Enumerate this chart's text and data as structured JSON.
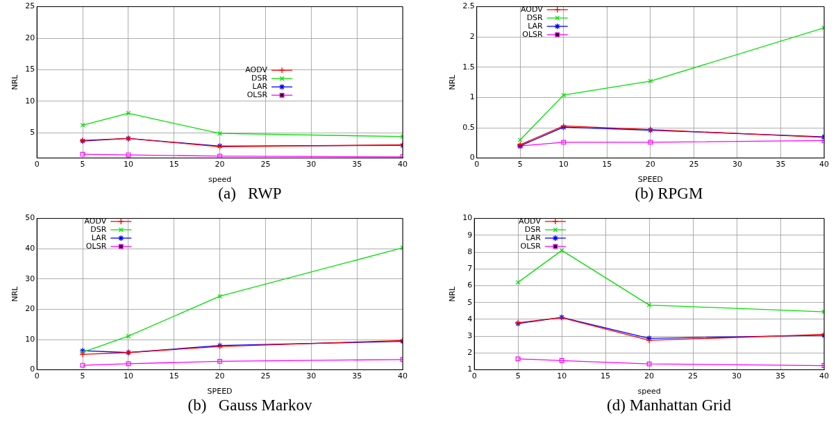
{
  "chart_data": [
    {
      "type": "line",
      "title": "(a)   RWP",
      "xlabel": "speed",
      "ylabel": "NRL",
      "x": [
        5,
        10,
        20,
        40
      ],
      "xlim": [
        0,
        40
      ],
      "xticks": [
        0,
        5,
        10,
        15,
        20,
        25,
        30,
        35,
        40
      ],
      "ylim": [
        1,
        25
      ],
      "yticks": [
        5,
        10,
        15,
        20,
        25
      ],
      "grid": true,
      "legend": "right",
      "series": [
        {
          "name": "AODV",
          "color": "#ff0000",
          "marker": "plus",
          "values": [
            3.8,
            4.1,
            2.8,
            3.1
          ]
        },
        {
          "name": "DSR",
          "color": "#00e000",
          "marker": "x",
          "values": [
            6.2,
            8.1,
            4.9,
            4.4
          ]
        },
        {
          "name": "LAR",
          "color": "#0000ff",
          "marker": "cross",
          "values": [
            3.7,
            4.1,
            2.9,
            3
          ]
        },
        {
          "name": "OLSR",
          "color": "#ff00ff",
          "marker": "square",
          "values": [
            1.6,
            1.5,
            1.3,
            1.2
          ]
        }
      ]
    },
    {
      "type": "line",
      "title": "(b) RPGM",
      "xlabel": "SPEED",
      "ylabel": "NRL",
      "x": [
        5,
        10,
        20,
        40
      ],
      "xlim": [
        0,
        40
      ],
      "xticks": [
        0,
        5,
        10,
        15,
        20,
        25,
        30,
        35,
        40
      ],
      "ylim": [
        0,
        2.5
      ],
      "yticks": [
        0,
        0.5,
        1,
        1.5,
        2,
        2.5
      ],
      "grid": true,
      "legend": "top left",
      "series": [
        {
          "name": "AODV",
          "color": "#ff0000",
          "marker": "plus",
          "values": [
            0.22,
            0.53,
            0.47,
            0.34
          ]
        },
        {
          "name": "DSR",
          "color": "#00e000",
          "marker": "x",
          "values": [
            0.3,
            1.04,
            1.27,
            2.15
          ]
        },
        {
          "name": "LAR",
          "color": "#0000ff",
          "marker": "cross",
          "values": [
            0.2,
            0.51,
            0.46,
            0.35
          ]
        },
        {
          "name": "OLSR",
          "color": "#ff00ff",
          "marker": "square",
          "values": [
            0.2,
            0.26,
            0.26,
            0.29
          ]
        }
      ]
    },
    {
      "type": "line",
      "title": "(b)   Gauss Markov",
      "xlabel": "SPEED",
      "ylabel": "NRL",
      "x": [
        5,
        10,
        20,
        40
      ],
      "xlim": [
        0,
        40
      ],
      "xticks": [
        0,
        5,
        10,
        15,
        20,
        25,
        30,
        35,
        40
      ],
      "ylim": [
        0,
        50
      ],
      "yticks": [
        0,
        10,
        20,
        30,
        40,
        50
      ],
      "grid": true,
      "legend": "top left",
      "series": [
        {
          "name": "AODV",
          "color": "#ff0000",
          "marker": "plus",
          "values": [
            5.1,
            5.7,
            7.7,
            9.7
          ]
        },
        {
          "name": "DSR",
          "color": "#00e000",
          "marker": "x",
          "values": [
            5.8,
            11.1,
            24.3,
            40.3
          ]
        },
        {
          "name": "LAR",
          "color": "#0000ff",
          "marker": "cross",
          "values": [
            6.3,
            5.7,
            8,
            9.4
          ]
        },
        {
          "name": "OLSR",
          "color": "#ff00ff",
          "marker": "square",
          "values": [
            1.5,
            2,
            2.8,
            3.4
          ]
        }
      ]
    },
    {
      "type": "line",
      "title": "(d) Manhattan Grid",
      "xlabel": "speed",
      "ylabel": "NRL",
      "x": [
        5,
        10,
        20,
        40
      ],
      "xlim": [
        0,
        40
      ],
      "xticks": [
        0,
        5,
        10,
        15,
        20,
        25,
        30,
        35,
        40
      ],
      "ylim": [
        1,
        10
      ],
      "yticks": [
        1,
        2,
        3,
        4,
        5,
        6,
        7,
        8,
        9,
        10
      ],
      "grid": true,
      "legend": "top left",
      "series": [
        {
          "name": "AODV",
          "color": "#ff0000",
          "marker": "plus",
          "values": [
            3.8,
            4.1,
            2.75,
            3.1
          ]
        },
        {
          "name": "DSR",
          "color": "#00e000",
          "marker": "x",
          "values": [
            6.2,
            8.1,
            4.85,
            4.45
          ]
        },
        {
          "name": "LAR",
          "color": "#0000ff",
          "marker": "cross",
          "values": [
            3.75,
            4.12,
            2.87,
            3.05
          ]
        },
        {
          "name": "OLSR",
          "color": "#ff00ff",
          "marker": "square",
          "values": [
            1.65,
            1.55,
            1.35,
            1.25
          ]
        }
      ]
    }
  ]
}
